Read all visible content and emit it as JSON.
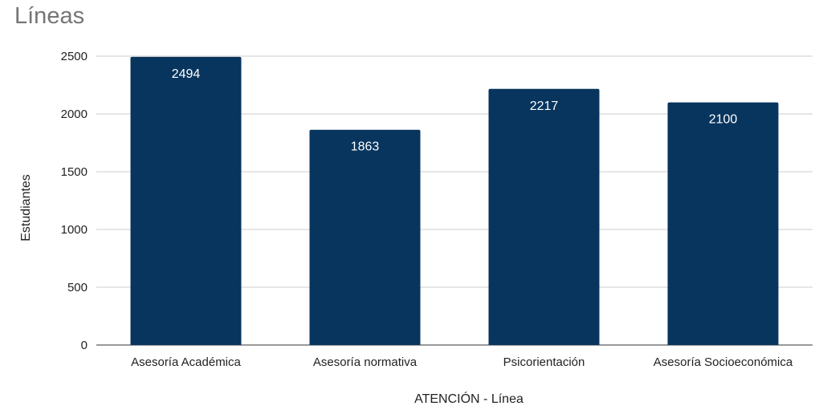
{
  "chart_data": {
    "type": "bar",
    "title": "Líneas",
    "xlabel": "ATENCIÓN - Línea",
    "ylabel": "Estudiantes",
    "categories": [
      "Asesoría Académica",
      "Asesoría normativa",
      "Psicorientación",
      "Asesoría Socioeconómica"
    ],
    "values": [
      2494,
      1863,
      2217,
      2100
    ],
    "ylim": [
      0,
      2500
    ],
    "yticks": [
      0,
      500,
      1000,
      1500,
      2000,
      2500
    ],
    "grid": true,
    "legend": "none",
    "bar_color": "#08355e"
  }
}
